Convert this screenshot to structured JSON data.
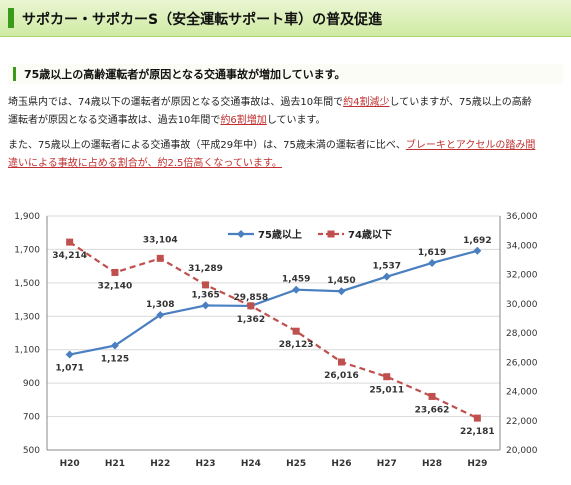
{
  "header": {
    "title": "サポカー・サポカーS（安全運転サポート車）の普及促進"
  },
  "subhead": {
    "text": "75歳以上の高齢運転者が原因となる交通事故が増加しています。"
  },
  "para1": {
    "line1_a": "埼玉県内では、74歳以下の運転者が原因となる交通事故は、過去10年間で",
    "line1_red": "約4割減少",
    "line1_b": "していますが、75歳以上の高齢",
    "line2_a": "運転者が原因となる交通事故は、過去10年間で",
    "line2_red": "約6割増加",
    "line2_b": "しています。"
  },
  "para2": {
    "line1_a": "また、75歳以上の運転者による交通事故（平成29年中）は、75歳未満の運転者に比べ、",
    "line1_red": "ブレーキとアクセルの踏み間",
    "line2_red": "違いによる事故に占める割合が、約2.5倍高くなっています。"
  },
  "chart_data": {
    "type": "line",
    "categories": [
      "H20",
      "H21",
      "H22",
      "H23",
      "H24",
      "H25",
      "H26",
      "H27",
      "H28",
      "H29"
    ],
    "series": [
      {
        "name": "75歳以上",
        "axis": "left",
        "color": "#4a7fc1",
        "style": "solid",
        "marker": "diamond",
        "values": [
          1071,
          1125,
          1308,
          1365,
          1362,
          1459,
          1450,
          1537,
          1619,
          1692
        ],
        "labels": [
          "1,071",
          "1,125",
          "1,308",
          "1,365",
          "1,362",
          "1,459",
          "1,450",
          "1,537",
          "1,619",
          "1,692"
        ]
      },
      {
        "name": "74歳以下",
        "axis": "right",
        "color": "#c0504d",
        "style": "dashed",
        "marker": "square",
        "values": [
          34214,
          32140,
          33104,
          31289,
          29858,
          28123,
          26016,
          25011,
          23662,
          22181
        ],
        "labels": [
          "34,214",
          "32,140",
          "33,104",
          "31,289",
          "29,858",
          "28,123",
          "26,016",
          "25,011",
          "23,662",
          "22,181"
        ]
      }
    ],
    "y_left": {
      "min": 500,
      "max": 1900,
      "ticks": [
        "500",
        "700",
        "900",
        "1,100",
        "1,300",
        "1,500",
        "1,700",
        "1,900"
      ]
    },
    "y_right": {
      "min": 20000,
      "max": 36000,
      "ticks": [
        "20,000",
        "22,000",
        "24,000",
        "26,000",
        "28,000",
        "30,000",
        "32,000",
        "34,000",
        "36,000"
      ]
    },
    "grid": true,
    "legend": "top-right"
  }
}
